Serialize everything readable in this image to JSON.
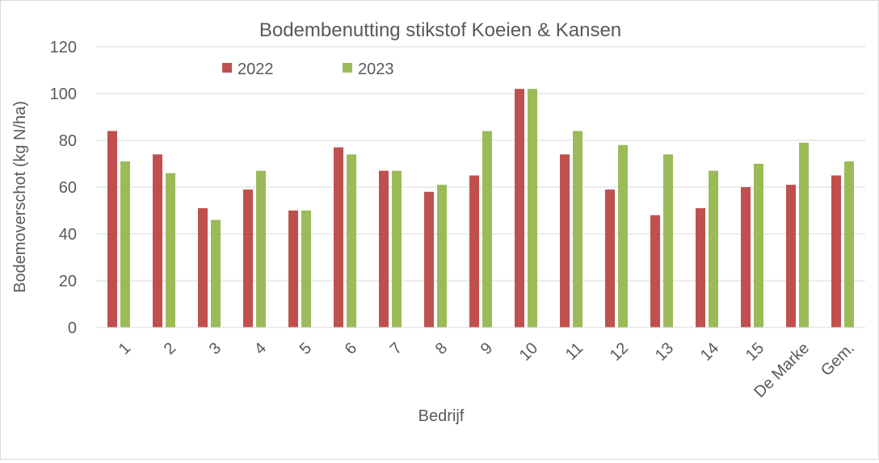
{
  "chart_data": {
    "type": "bar",
    "title": "Bodembenutting stikstof Koeien & Kansen",
    "xlabel": "Bedrijf",
    "ylabel": "Bodemoverschot (kg N/ha)",
    "ylim": [
      0,
      120
    ],
    "yticks": [
      0,
      20,
      40,
      60,
      80,
      100,
      120
    ],
    "grid": true,
    "legend": "top-left",
    "categories": [
      "1",
      "2",
      "3",
      "4",
      "5",
      "6",
      "7",
      "8",
      "9",
      "10",
      "11",
      "12",
      "13",
      "14",
      "15",
      "De Marke",
      "Gem."
    ],
    "series": [
      {
        "name": "2022",
        "color": "#c0504d",
        "values": [
          84,
          74,
          51,
          59,
          50,
          77,
          67,
          58,
          65,
          102,
          74,
          59,
          48,
          51,
          60,
          61,
          65
        ]
      },
      {
        "name": "2023",
        "color": "#9bbb59",
        "values": [
          71,
          66,
          46,
          67,
          50,
          74,
          67,
          61,
          84,
          102,
          84,
          78,
          74,
          67,
          70,
          79,
          71
        ]
      }
    ]
  }
}
